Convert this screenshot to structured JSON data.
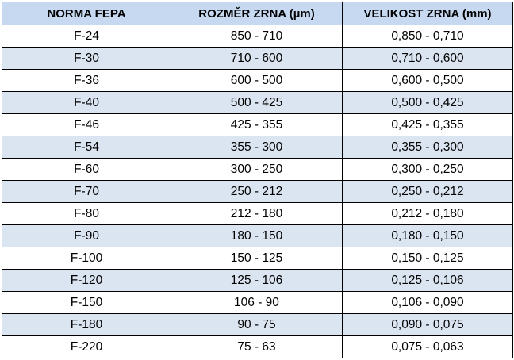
{
  "table": {
    "headers": [
      "NORMA FEPA",
      "ROZMĚR ZRNA (µm)",
      "VELIKOST ZRNA (mm)"
    ],
    "rows": [
      [
        "F-24",
        "850 - 710",
        "0,850 - 0,710"
      ],
      [
        "F-30",
        "710 - 600",
        "0,710 - 0,600"
      ],
      [
        "F-36",
        "600 - 500",
        "0,600 - 0,500"
      ],
      [
        "F-40",
        "500 - 425",
        "0,500 - 0,425"
      ],
      [
        "F-46",
        "425 - 355",
        "0,425 - 0,355"
      ],
      [
        "F-54",
        "355 - 300",
        "0,355 - 0,300"
      ],
      [
        "F-60",
        "300 - 250",
        "0,300 - 0,250"
      ],
      [
        "F-70",
        "250 - 212",
        "0,250 - 0,212"
      ],
      [
        "F-80",
        "212 - 180",
        "0,212 - 0,180"
      ],
      [
        "F-90",
        "180 - 150",
        "0,180 - 0,150"
      ],
      [
        "F-100",
        "150 - 125",
        "0,150 - 0,125"
      ],
      [
        "F-120",
        "125 - 106",
        "0,125 - 0,106"
      ],
      [
        "F-150",
        "106 - 90",
        "0,106 - 0,090"
      ],
      [
        "F-180",
        "90 - 75",
        "0,090 - 0,075"
      ],
      [
        "F-220",
        "75 - 63",
        "0,075 - 0,063"
      ]
    ]
  },
  "colors": {
    "header_bg": "#c6d9f1",
    "stripe_bg": "#dbe5f1",
    "border": "#000000"
  }
}
